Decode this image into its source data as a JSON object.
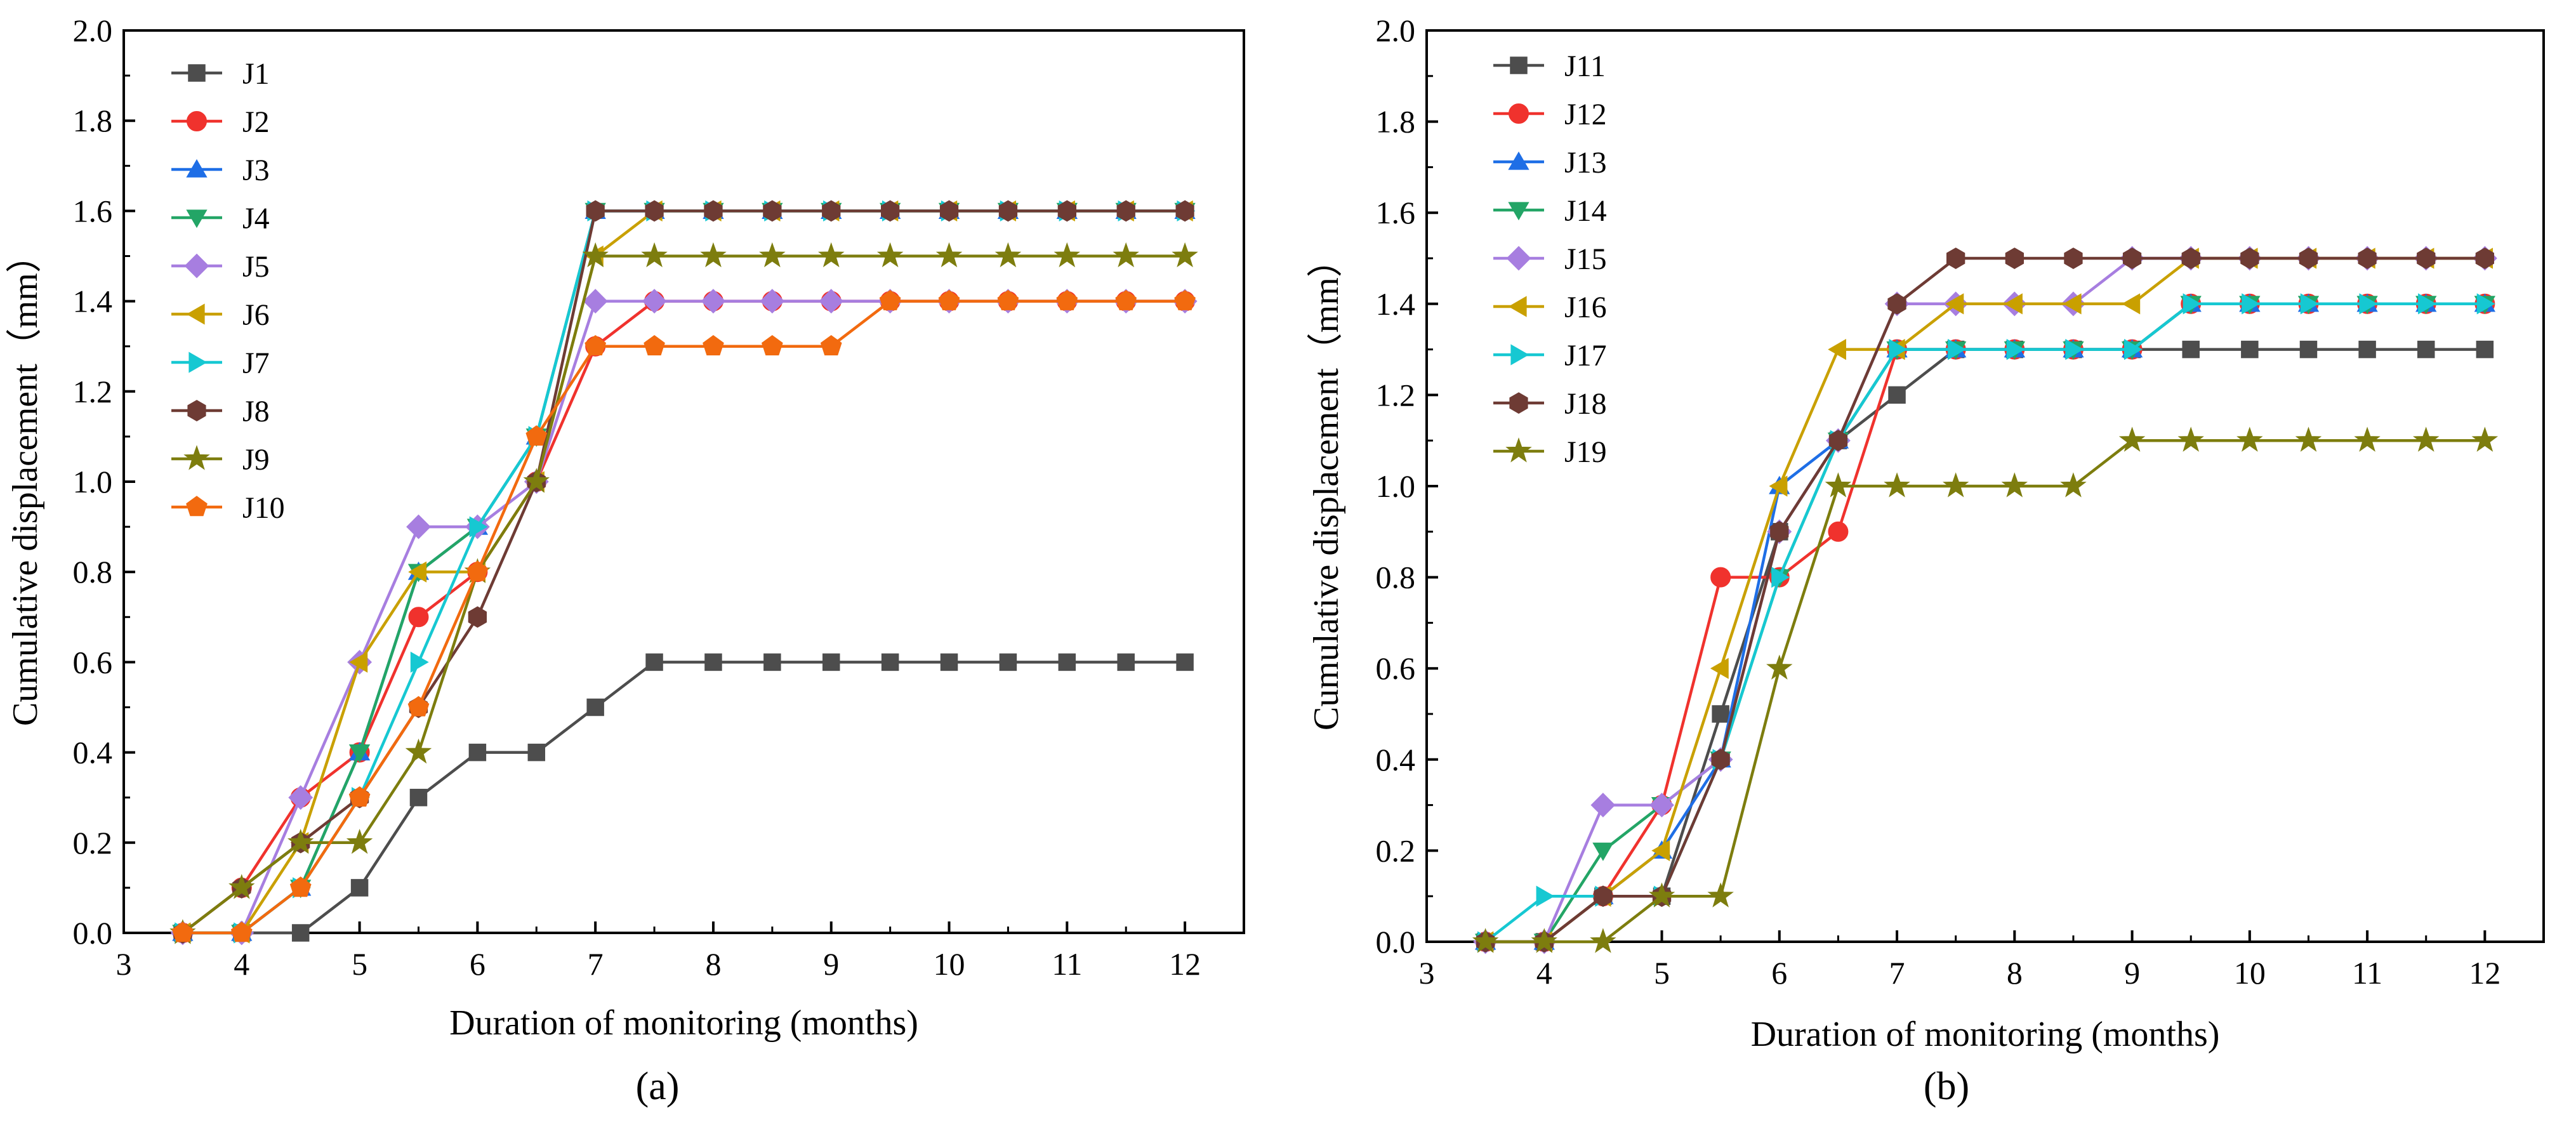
{
  "figure_labels": [
    "(a)",
    "(b)"
  ],
  "chart_data": [
    {
      "type": "line",
      "panel_label": "(a)",
      "xlabel": "Duration of monitoring (months)",
      "ylabel": "Cumulative  displacement（mm）",
      "xlim": [
        3,
        12.5
      ],
      "ylim": [
        0,
        2.0
      ],
      "xticks": [
        "3",
        "4",
        "5",
        "6",
        "7",
        "8",
        "9",
        "10",
        "11",
        "12"
      ],
      "yticks": [
        "0.0",
        "0.2",
        "0.4",
        "0.6",
        "0.8",
        "1.0",
        "1.2",
        "1.4",
        "1.6",
        "1.8",
        "2.0"
      ],
      "legend_position": "top-left",
      "x": [
        3.5,
        4,
        4.5,
        5,
        5.5,
        6,
        6.5,
        7,
        7.5,
        8,
        8.5,
        9,
        9.5,
        10,
        10.5,
        11,
        11.5,
        12
      ],
      "series": [
        {
          "name": "J1",
          "color": "#4d4d4d",
          "marker": "square",
          "values": [
            0,
            0,
            0,
            0.1,
            0.3,
            0.4,
            0.4,
            0.5,
            0.6,
            0.6,
            0.6,
            0.6,
            0.6,
            0.6,
            0.6,
            0.6,
            0.6,
            0.6
          ]
        },
        {
          "name": "J2",
          "color": "#f0322d",
          "marker": "circle",
          "values": [
            0,
            0.1,
            0.3,
            0.4,
            0.7,
            0.8,
            1.0,
            1.3,
            1.4,
            1.4,
            1.4,
            1.4,
            1.4,
            1.4,
            1.4,
            1.4,
            1.4,
            1.4
          ]
        },
        {
          "name": "J3",
          "color": "#1e6ee6",
          "marker": "triangle-up",
          "values": [
            0,
            0,
            0.1,
            0.4,
            0.8,
            0.9,
            1.1,
            1.6,
            1.6,
            1.6,
            1.6,
            1.6,
            1.6,
            1.6,
            1.6,
            1.6,
            1.6,
            1.6
          ]
        },
        {
          "name": "J4",
          "color": "#23a566",
          "marker": "triangle-down",
          "values": [
            0,
            0,
            0.1,
            0.4,
            0.8,
            0.9,
            1.1,
            1.6,
            1.6,
            1.6,
            1.6,
            1.6,
            1.6,
            1.6,
            1.6,
            1.6,
            1.6,
            1.6
          ]
        },
        {
          "name": "J5",
          "color": "#a77ee0",
          "marker": "diamond",
          "values": [
            0,
            0,
            0.3,
            0.6,
            0.9,
            0.9,
            1.0,
            1.4,
            1.4,
            1.4,
            1.4,
            1.4,
            1.4,
            1.4,
            1.4,
            1.4,
            1.4,
            1.4
          ]
        },
        {
          "name": "J6",
          "color": "#c9a000",
          "marker": "triangle-left",
          "values": [
            0,
            0,
            0.2,
            0.6,
            0.8,
            0.8,
            1.0,
            1.5,
            1.6,
            1.6,
            1.6,
            1.6,
            1.6,
            1.6,
            1.6,
            1.6,
            1.6,
            1.6
          ]
        },
        {
          "name": "J7",
          "color": "#16c8d2",
          "marker": "triangle-right",
          "values": [
            0,
            0,
            0.1,
            0.3,
            0.6,
            0.9,
            1.1,
            1.6,
            1.6,
            1.6,
            1.6,
            1.6,
            1.6,
            1.6,
            1.6,
            1.6,
            1.6,
            1.6
          ]
        },
        {
          "name": "J8",
          "color": "#6e3b34",
          "marker": "hexagon",
          "values": [
            0,
            0.1,
            0.2,
            0.3,
            0.5,
            0.7,
            1.0,
            1.6,
            1.6,
            1.6,
            1.6,
            1.6,
            1.6,
            1.6,
            1.6,
            1.6,
            1.6,
            1.6
          ]
        },
        {
          "name": "J9",
          "color": "#7d7d0e",
          "marker": "star",
          "values": [
            0,
            0.1,
            0.2,
            0.2,
            0.4,
            0.8,
            1.0,
            1.5,
            1.5,
            1.5,
            1.5,
            1.5,
            1.5,
            1.5,
            1.5,
            1.5,
            1.5,
            1.5
          ]
        },
        {
          "name": "J10",
          "color": "#f26a0f",
          "marker": "pentagon",
          "values": [
            0,
            0,
            0.1,
            0.3,
            0.5,
            0.8,
            1.1,
            1.3,
            1.3,
            1.3,
            1.3,
            1.3,
            1.4,
            1.4,
            1.4,
            1.4,
            1.4,
            1.4
          ]
        }
      ]
    },
    {
      "type": "line",
      "panel_label": "(b)",
      "xlabel": "Duration of monitoring (months)",
      "ylabel": "Cumulative  displacement（mm）",
      "xlim": [
        3,
        12.5
      ],
      "ylim": [
        0,
        2.0
      ],
      "xticks": [
        "3",
        "4",
        "5",
        "6",
        "7",
        "8",
        "9",
        "10",
        "11",
        "12"
      ],
      "yticks": [
        "0.0",
        "0.2",
        "0.4",
        "0.6",
        "0.8",
        "1.0",
        "1.2",
        "1.4",
        "1.6",
        "1.8",
        "2.0"
      ],
      "legend_position": "top-left",
      "x": [
        3.5,
        4,
        4.5,
        5,
        5.5,
        6,
        6.5,
        7,
        7.5,
        8,
        8.5,
        9,
        9.5,
        10,
        10.5,
        11,
        11.5,
        12
      ],
      "series": [
        {
          "name": "J11",
          "color": "#4d4d4d",
          "marker": "square",
          "values": [
            0,
            0,
            0.1,
            0.1,
            0.5,
            0.9,
            1.1,
            1.2,
            1.3,
            1.3,
            1.3,
            1.3,
            1.3,
            1.3,
            1.3,
            1.3,
            1.3,
            1.3
          ]
        },
        {
          "name": "J12",
          "color": "#f0322d",
          "marker": "circle",
          "values": [
            0,
            0,
            0.1,
            0.3,
            0.8,
            0.8,
            0.9,
            1.3,
            1.3,
            1.3,
            1.3,
            1.3,
            1.4,
            1.4,
            1.4,
            1.4,
            1.4,
            1.4
          ]
        },
        {
          "name": "J13",
          "color": "#1e6ee6",
          "marker": "triangle-up",
          "values": [
            0,
            0,
            0.1,
            0.2,
            0.4,
            1.0,
            1.1,
            1.3,
            1.3,
            1.3,
            1.3,
            1.3,
            1.4,
            1.4,
            1.4,
            1.4,
            1.4,
            1.4
          ]
        },
        {
          "name": "J14",
          "color": "#23a566",
          "marker": "triangle-down",
          "values": [
            0,
            0,
            0.2,
            0.3,
            0.4,
            0.8,
            1.1,
            1.3,
            1.3,
            1.3,
            1.3,
            1.3,
            1.4,
            1.4,
            1.4,
            1.4,
            1.4,
            1.4
          ]
        },
        {
          "name": "J15",
          "color": "#a77ee0",
          "marker": "diamond",
          "values": [
            0,
            0,
            0.3,
            0.3,
            0.4,
            0.9,
            1.1,
            1.4,
            1.4,
            1.4,
            1.4,
            1.5,
            1.5,
            1.5,
            1.5,
            1.5,
            1.5,
            1.5
          ]
        },
        {
          "name": "J16",
          "color": "#c9a000",
          "marker": "triangle-left",
          "values": [
            0,
            0,
            0.1,
            0.2,
            0.6,
            1.0,
            1.3,
            1.3,
            1.4,
            1.4,
            1.4,
            1.4,
            1.5,
            1.5,
            1.5,
            1.5,
            1.5,
            1.5
          ]
        },
        {
          "name": "J17",
          "color": "#16c8d2",
          "marker": "triangle-right",
          "values": [
            0,
            0.1,
            0.1,
            0.1,
            0.4,
            0.8,
            1.1,
            1.3,
            1.3,
            1.3,
            1.3,
            1.3,
            1.4,
            1.4,
            1.4,
            1.4,
            1.4,
            1.4
          ]
        },
        {
          "name": "J18",
          "color": "#6e3b34",
          "marker": "hexagon",
          "values": [
            0,
            0,
            0.1,
            0.1,
            0.4,
            0.9,
            1.1,
            1.4,
            1.5,
            1.5,
            1.5,
            1.5,
            1.5,
            1.5,
            1.5,
            1.5,
            1.5,
            1.5
          ]
        },
        {
          "name": "J19",
          "color": "#7d7d0e",
          "marker": "star",
          "values": [
            0,
            0,
            0,
            0.1,
            0.1,
            0.6,
            1.0,
            1.0,
            1.0,
            1.0,
            1.0,
            1.1,
            1.1,
            1.1,
            1.1,
            1.1,
            1.1,
            1.1
          ]
        }
      ]
    }
  ]
}
